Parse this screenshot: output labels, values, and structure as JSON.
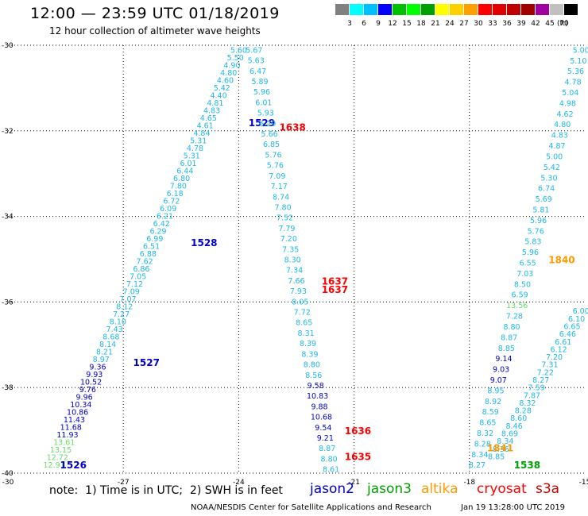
{
  "header": {
    "title": "12:00 — 23:59 UTC 01/18/2019",
    "subtitle": "12 hour collection of altimeter wave heights"
  },
  "legend": {
    "colors": [
      "#808080",
      "#00ffff",
      "#00bfff",
      "#0000ff",
      "#00bf00",
      "#00ff00",
      "#00a000",
      "#ffff00",
      "#ffd000",
      "#ffa000",
      "#ff0000",
      "#e00000",
      "#c00000",
      "#a00000",
      "#a000a0",
      "#c0c0c0",
      "#000000"
    ],
    "labels": [
      "3",
      "6",
      "9",
      "12",
      "15",
      "18",
      "21",
      "24",
      "27",
      "30",
      "33",
      "36",
      "39",
      "42",
      "45",
      "70"
    ],
    "unit": "(ft)"
  },
  "footer": {
    "note": "note:  1) Time is in UTC;  2) SWH is in feet",
    "satellites": [
      {
        "name": "jason2",
        "color": "#0000cc"
      },
      {
        "name": "jason3",
        "color": "#00a000"
      },
      {
        "name": "altika",
        "color": "#ff9900"
      },
      {
        "name": "cryosat",
        "color": "#ff0000"
      },
      {
        "name": "s3a",
        "color": "#cc0000"
      }
    ],
    "credit": "NOAA/NESDIS Center for Satellite Applications and Research",
    "timestamp": "Jan 19 13:28:00 UTC 2019"
  },
  "chart_data": {
    "type": "scatter",
    "xlim": [
      -30,
      -15
    ],
    "ylim": [
      -40,
      -30
    ],
    "grid": true,
    "xticks": [
      -30,
      -27,
      -24,
      -21,
      -18,
      -15
    ],
    "yticks": [
      -30,
      -32,
      -34,
      -36,
      -38,
      -40
    ],
    "color_scale": {
      "breaks": [
        3,
        6,
        9,
        12,
        15,
        18,
        21
      ],
      "colors": [
        "#808080",
        "#00ffff",
        "#00bfff",
        "#0000ff",
        "#00bf00",
        "#00ff00",
        "#00a000",
        "#ffff00"
      ]
    },
    "series": [
      {
        "name": "jason2",
        "start": [
          -28.8,
          -39.8
        ],
        "end": [
          -24.0,
          -30.1
        ],
        "values": [
          12.91,
          12.72,
          13.15,
          13.61,
          11.93,
          11.68,
          11.43,
          10.86,
          10.34,
          9.96,
          9.76,
          10.52,
          9.93,
          9.36,
          8.97,
          8.21,
          8.14,
          8.68,
          7.43,
          8.1,
          7.27,
          8.12,
          7.07,
          7.09,
          7.12,
          7.05,
          6.86,
          7.62,
          6.88,
          6.51,
          6.99,
          6.29,
          6.42,
          6.21,
          6.09,
          6.72,
          6.18,
          7.8,
          6.8,
          6.44,
          6.01,
          5.31,
          4.78,
          5.31,
          4.84,
          4.61,
          4.65,
          4.83,
          4.81,
          4.4,
          5.42,
          4.6,
          4.8,
          4.9,
          5.5,
          5.6
        ],
        "time_labels": [
          {
            "t": "1526",
            "x": -28.3,
            "y": -39.8
          },
          {
            "t": "1527",
            "x": -26.4,
            "y": -37.4
          },
          {
            "t": "1528",
            "x": -24.9,
            "y": -34.6
          },
          {
            "t": "1529",
            "x": -23.4,
            "y": -31.8
          }
        ]
      },
      {
        "name": "jason2",
        "start": [
          -23.6,
          -30.1
        ],
        "end": [
          -21.6,
          -39.9
        ],
        "values": [
          5.67,
          5.63,
          6.47,
          5.89,
          5.96,
          6.01,
          5.93,
          6.29,
          5.66,
          6.85,
          5.76,
          5.76,
          7.09,
          7.17,
          8.74,
          7.8,
          7.52,
          7.79,
          7.2,
          7.35,
          8.3,
          7.34,
          7.66,
          7.93,
          8.05,
          7.72,
          8.65,
          8.31,
          8.39,
          8.39,
          8.8,
          8.56,
          9.58,
          10.83,
          9.88,
          10.68,
          9.54,
          9.21,
          8.87,
          8.8,
          8.61
        ],
        "time_labels": []
      },
      {
        "name": "cryosat",
        "start": [
          -22.6,
          -31.9
        ],
        "end": [
          -22.6,
          -31.9
        ],
        "values": [],
        "time_labels": [
          {
            "t": "1638",
            "x": -22.6,
            "y": -31.9
          },
          {
            "t": "1637",
            "x": -21.5,
            "y": -35.5
          },
          {
            "t": "1637",
            "x": -21.5,
            "y": -35.7
          },
          {
            "t": "1636",
            "x": -20.9,
            "y": -39.0
          },
          {
            "t": "1635",
            "x": -20.9,
            "y": -39.6
          }
        ]
      },
      {
        "name": "jason3",
        "start": [
          -17.8,
          -39.8
        ],
        "end": [
          -15.1,
          -30.1
        ],
        "values": [
          8.27,
          8.34,
          8.28,
          8.32,
          8.65,
          8.59,
          8.92,
          8.95,
          9.07,
          9.03,
          9.14,
          8.85,
          8.87,
          8.8,
          7.28,
          13.56,
          6.59,
          8.5,
          7.03,
          6.55,
          5.96,
          5.83,
          5.76,
          5.96,
          5.81,
          5.69,
          6.74,
          5.3,
          5.42,
          5.0,
          4.87,
          4.83,
          4.8,
          4.62,
          4.98,
          5.04,
          4.78,
          5.36,
          5.1,
          5.0
        ],
        "time_labels": [
          {
            "t": "1538",
            "x": -16.5,
            "y": -39.8
          }
        ]
      },
      {
        "name": "jason3",
        "start": [
          -17.3,
          -39.6
        ],
        "end": [
          -15.1,
          -36.2
        ],
        "values": [
          8.85,
          8.36,
          8.34,
          8.69,
          8.46,
          8.6,
          8.28,
          8.32,
          7.87,
          7.59,
          8.27,
          7.22,
          7.31,
          7.2,
          6.12,
          6.61,
          6.46,
          6.65,
          6.1,
          6.0
        ],
        "time_labels": []
      },
      {
        "name": "altika",
        "start": [
          -16.5,
          -38.7
        ],
        "end": [
          -16.5,
          -38.7
        ],
        "values": [],
        "time_labels": [
          {
            "t": "1840",
            "x": -15.6,
            "y": -35.0
          },
          {
            "t": "1841",
            "x": -17.2,
            "y": -39.4
          }
        ]
      }
    ]
  }
}
